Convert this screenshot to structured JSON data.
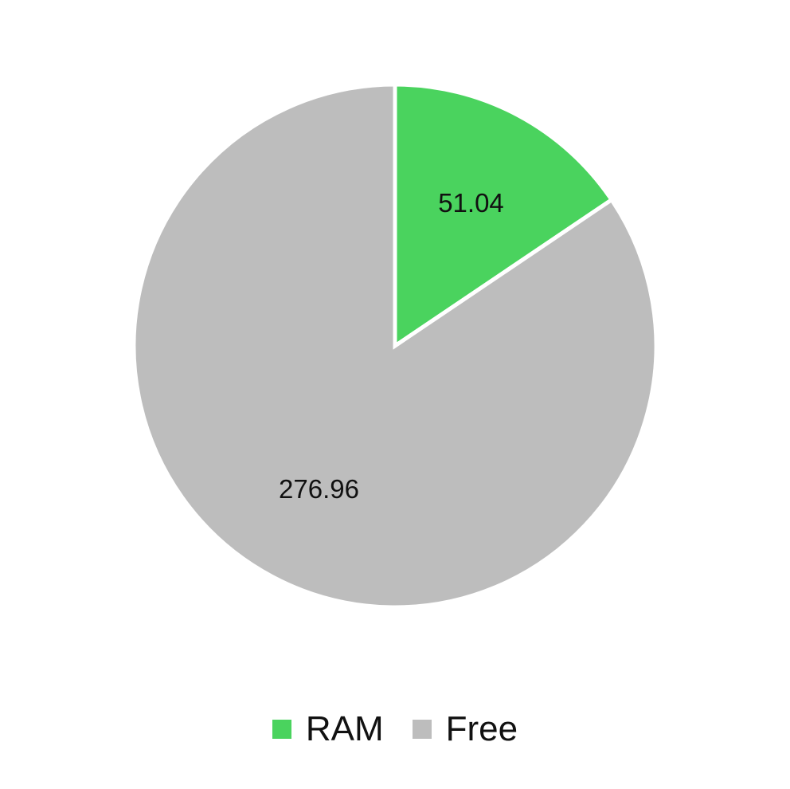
{
  "chart_data": {
    "type": "pie",
    "categories": [
      "RAM",
      "Free"
    ],
    "values": [
      51.04,
      276.96
    ],
    "value_labels": [
      "51.04",
      "276.96"
    ],
    "colors": [
      "#4ad35e",
      "#bdbdbd"
    ],
    "start_angle_deg": 0,
    "direction": "clockwise",
    "legend_position": "bottom"
  },
  "legend": {
    "items": [
      {
        "label": "RAM",
        "color": "#4ad35e"
      },
      {
        "label": "Free",
        "color": "#bdbdbd"
      }
    ]
  }
}
